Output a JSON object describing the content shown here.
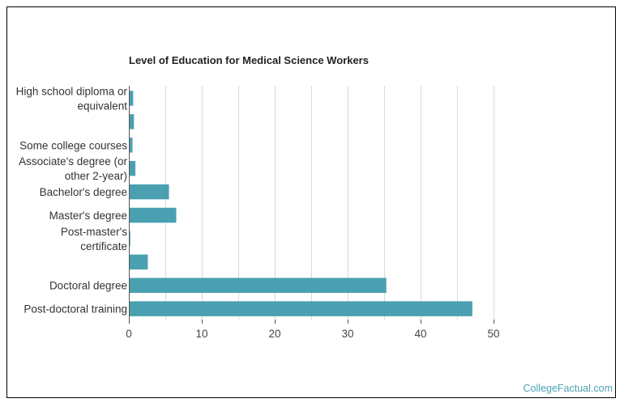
{
  "chart_data": {
    "type": "bar",
    "orientation": "horizontal",
    "title": "Level of Education for Medical Science Workers",
    "xlabel": "",
    "ylabel": "",
    "categories": [
      [
        "High school diploma or",
        "equivalent"
      ],
      [],
      [
        "Some college courses"
      ],
      [
        "Associate's degree (or",
        "other 2-year)"
      ],
      [
        "Bachelor's degree"
      ],
      [
        "Master's degree"
      ],
      [
        "Post-master's",
        "certificate"
      ],
      [],
      [
        "Doctoral degree"
      ],
      [
        "Post-doctoral training"
      ]
    ],
    "values": [
      0.6,
      0.7,
      0.5,
      0.9,
      5.5,
      6.5,
      0.2,
      2.6,
      35.3,
      47.1
    ],
    "xlim": [
      0,
      50
    ],
    "xticks": [
      0,
      10,
      20,
      30,
      40,
      50
    ],
    "grid": true,
    "bar_color": "#4aa0b0",
    "grid_color": "#d9d9d9",
    "axis_color": "#555555"
  },
  "credit": "CollegeFactual.com"
}
